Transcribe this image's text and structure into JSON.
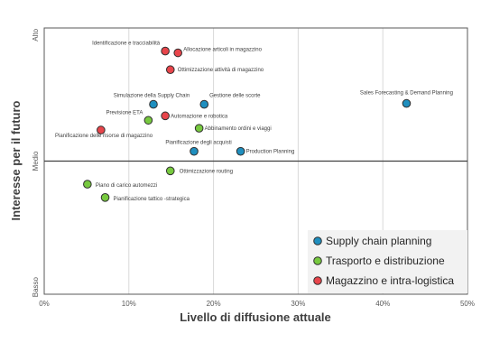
{
  "chart_data": {
    "type": "scatter",
    "title": "",
    "xlabel": "Livello di diffusione attuale",
    "ylabel": "Interesse per il futuro",
    "xlim": [
      0,
      50
    ],
    "ylim": [
      0,
      3
    ],
    "x_ticks": [
      "0%",
      "10%",
      "20%",
      "30%",
      "40%",
      "50%"
    ],
    "y_ticks": [
      {
        "value": 0.08,
        "label": "Basso"
      },
      {
        "value": 1.5,
        "label": "Medio"
      },
      {
        "value": 2.92,
        "label": "Alto"
      }
    ],
    "midline_y": 1.5,
    "grid": "vertical",
    "legend_position": "bottom-right",
    "series": [
      {
        "name": "Supply chain planning",
        "color": "#1f8fbf",
        "points": [
          {
            "label": "Simulazione della Supply Chain",
            "x": 12.9,
            "y": 2.14
          },
          {
            "label": "Gestione delle scorte",
            "x": 18.9,
            "y": 2.14
          },
          {
            "label": "Sales Forecasting & Demand Planning",
            "x": 42.8,
            "y": 2.15
          },
          {
            "label": "Pianificazione degli acquisti",
            "x": 17.7,
            "y": 1.61
          },
          {
            "label": "Production Planning",
            "x": 23.2,
            "y": 1.61
          }
        ]
      },
      {
        "name": "Trasporto e distribuzione",
        "color": "#77c93f",
        "points": [
          {
            "label": "Previsione ETA",
            "x": 12.3,
            "y": 1.96
          },
          {
            "label": "Abbinamento ordini e viaggi",
            "x": 18.3,
            "y": 1.87
          },
          {
            "label": "Ottimizzazione routing",
            "x": 14.9,
            "y": 1.39
          },
          {
            "label": "Piano di carico automezzi",
            "x": 5.1,
            "y": 1.24
          },
          {
            "label": "Pianificazione tattico -strategica",
            "x": 7.2,
            "y": 1.09
          }
        ]
      },
      {
        "name": "Magazzino e intra-logistica",
        "color": "#e8454b",
        "points": [
          {
            "label": "Identificazione e tracciabilità",
            "x": 14.3,
            "y": 2.74
          },
          {
            "label": "Allocazione articoli in magazzino",
            "x": 15.8,
            "y": 2.72
          },
          {
            "label": "Ottimizzazione attività di magazzino",
            "x": 14.9,
            "y": 2.53
          },
          {
            "label": "Automazione e robotica",
            "x": 14.3,
            "y": 2.01
          },
          {
            "label": "Pianificazione delle risorse di magazzino",
            "x": 6.7,
            "y": 1.85
          }
        ]
      }
    ]
  }
}
